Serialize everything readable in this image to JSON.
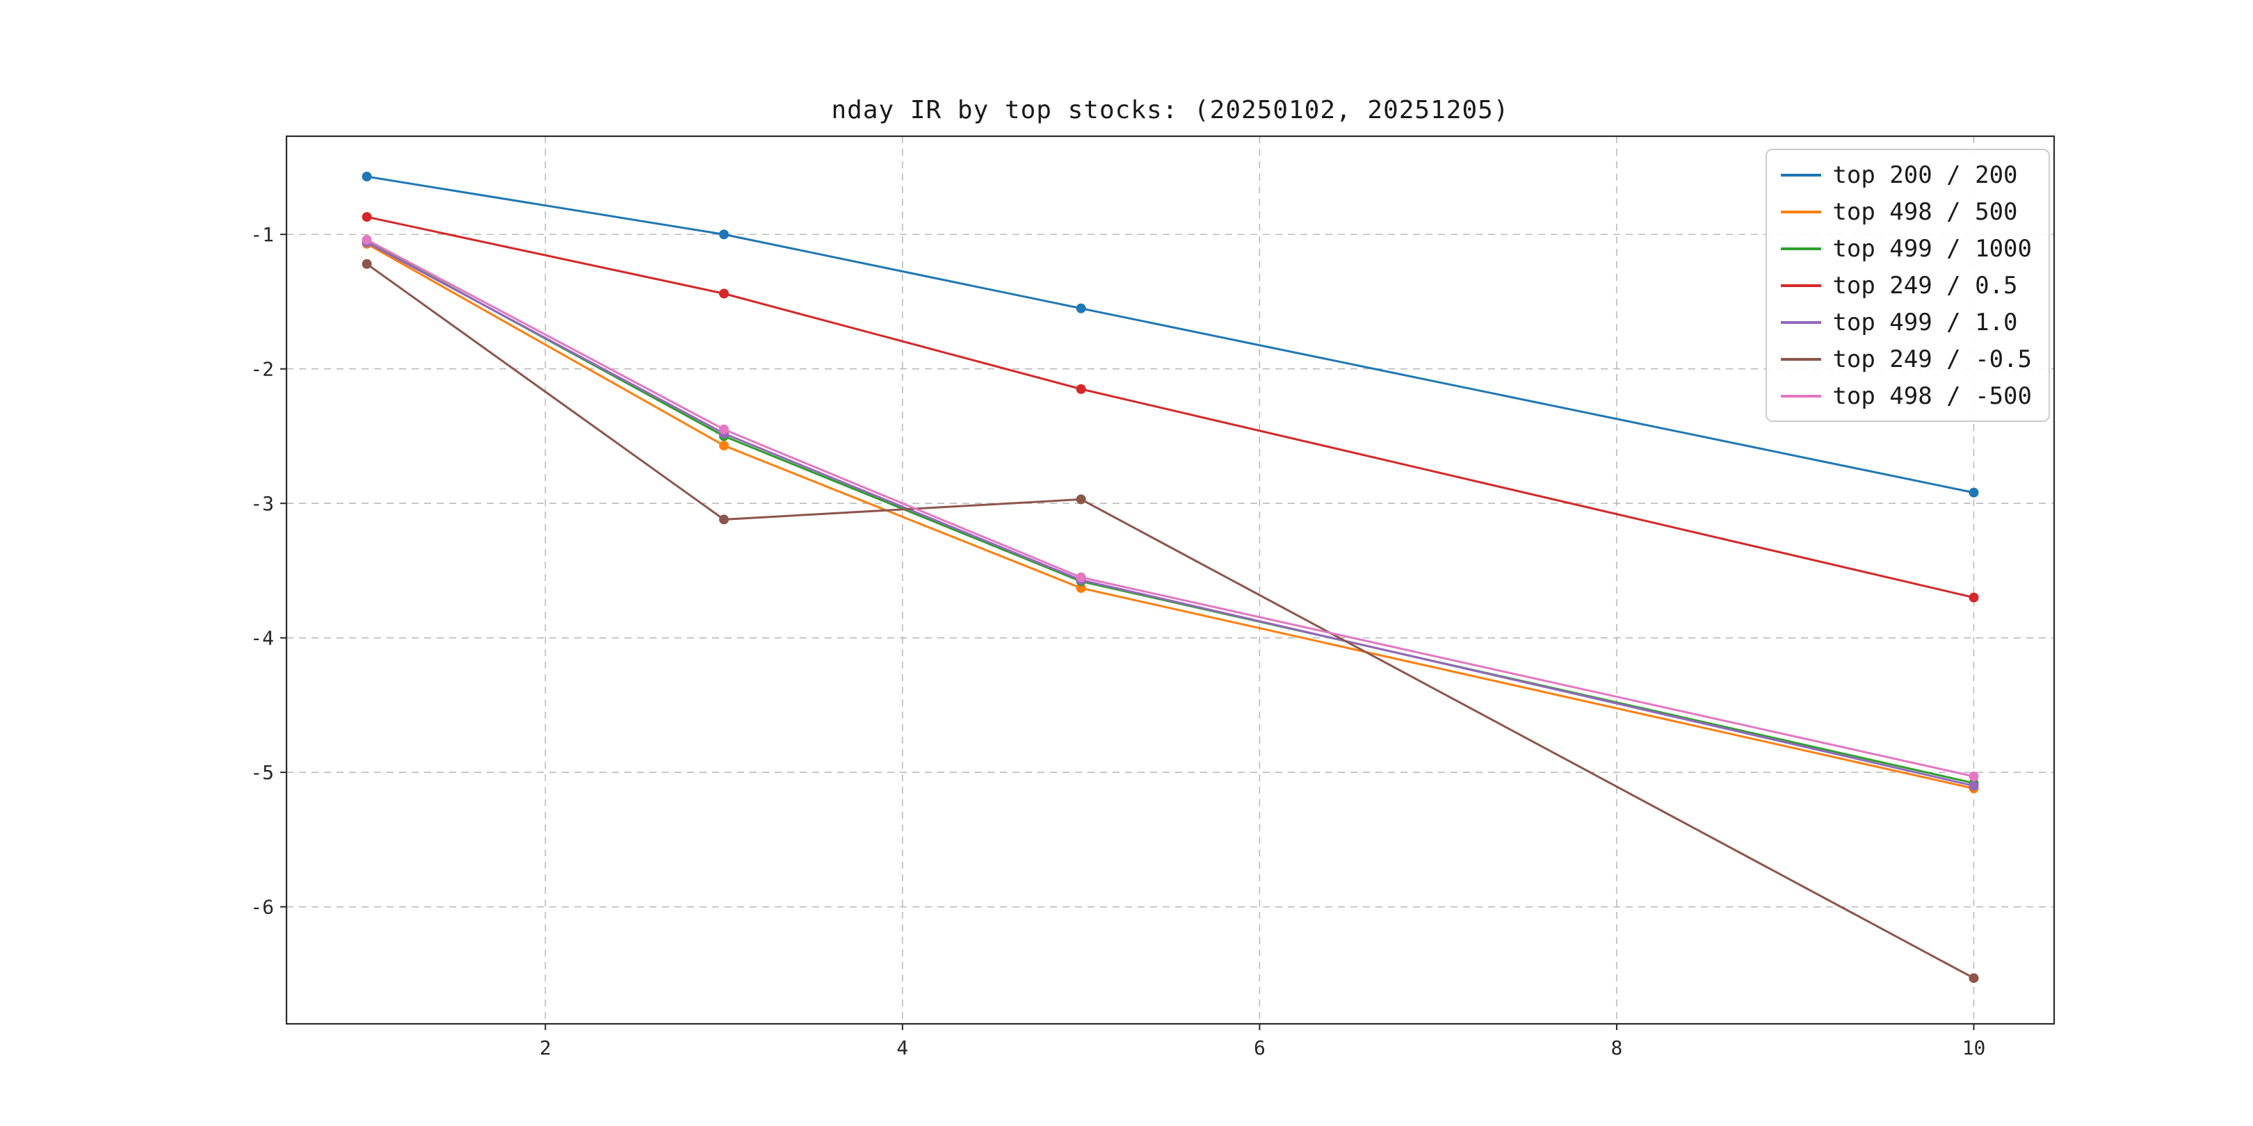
{
  "chart_data": {
    "type": "line",
    "title": "nday IR by top stocks: (20250102, 20251205)",
    "xlabel": "",
    "ylabel": "",
    "x": [
      1,
      3,
      5,
      10
    ],
    "series": [
      {
        "name": "top 200 / 200",
        "color": "#1f77b4",
        "values": [
          -0.57,
          -1.0,
          -1.55,
          -2.92
        ]
      },
      {
        "name": "top 498 / 500",
        "color": "#ff7f0e",
        "values": [
          -1.07,
          -2.57,
          -3.63,
          -5.12
        ]
      },
      {
        "name": "top 499 / 1000",
        "color": "#2ca02c",
        "values": [
          -1.05,
          -2.5,
          -3.58,
          -5.08
        ]
      },
      {
        "name": "top 249 / 0.5",
        "color": "#d62728",
        "values": [
          -0.87,
          -1.44,
          -2.15,
          -3.7
        ]
      },
      {
        "name": "top 499 / 1.0",
        "color": "#9467bd",
        "values": [
          -1.06,
          -2.48,
          -3.57,
          -5.1
        ]
      },
      {
        "name": "top 249 / -0.5",
        "color": "#8c564b",
        "values": [
          -1.22,
          -3.12,
          -2.97,
          -6.53
        ]
      },
      {
        "name": "top 498 / -500",
        "color": "#e377c2",
        "values": [
          -1.04,
          -2.45,
          -3.55,
          -5.03
        ]
      }
    ],
    "xticks": [
      2,
      4,
      6,
      8,
      10
    ],
    "yticks": [
      -1,
      -2,
      -3,
      -4,
      -5,
      -6
    ],
    "xlim": [
      0.55,
      10.45
    ],
    "ylim": [
      -6.87,
      -0.27
    ],
    "grid": true,
    "grid_style": "dashed",
    "legend_position": "upper right",
    "marker": "circle",
    "marker_radius": 7
  }
}
